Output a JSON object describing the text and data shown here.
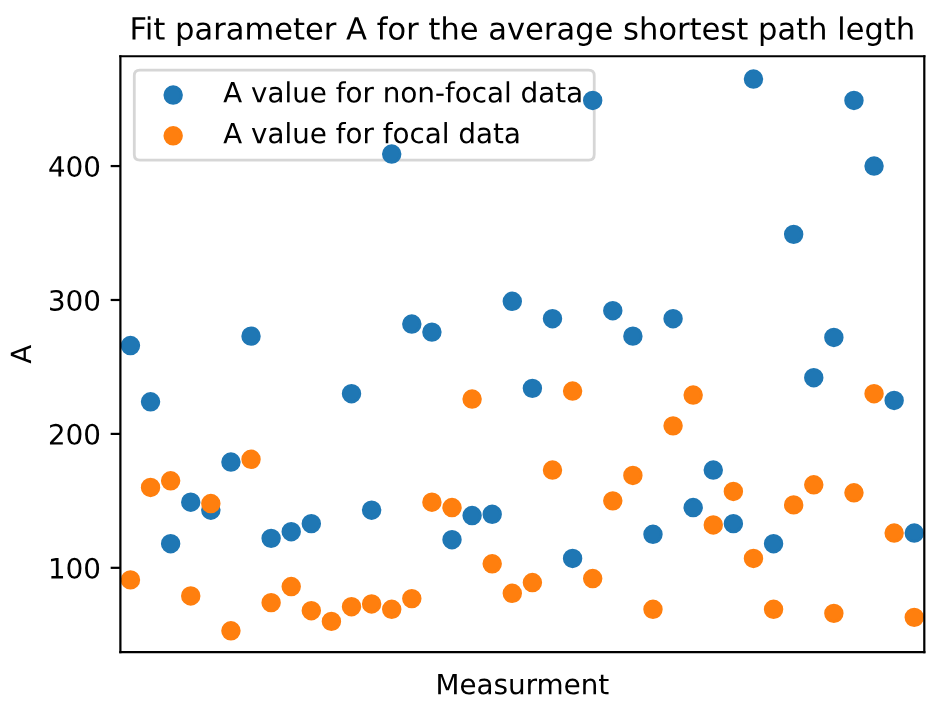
{
  "chart_data": {
    "type": "scatter",
    "title": "Fit parameter A for the average shortest path legth",
    "xlabel": "Measurment",
    "ylabel": "A",
    "categories": [
      null,
      null,
      null,
      null,
      null,
      null,
      null,
      null,
      null,
      null,
      null,
      null,
      null,
      null,
      null,
      null,
      null,
      null,
      null,
      null,
      null,
      null,
      null,
      null,
      null,
      null,
      null,
      null,
      null,
      null,
      null,
      null,
      null,
      null,
      null,
      null,
      null,
      null,
      null,
      null
    ],
    "series": [
      {
        "name": "A value for non-focal data",
        "color": "#1f77b4",
        "values": [
          266,
          224,
          118,
          149,
          143,
          179,
          273,
          122,
          127,
          133,
          null,
          230,
          143,
          409,
          282,
          276,
          121,
          139,
          140,
          299,
          234,
          286,
          107,
          449,
          292,
          273,
          125,
          286,
          145,
          173,
          133,
          465,
          118,
          349,
          242,
          272,
          449,
          400,
          225,
          126
        ]
      },
      {
        "name": "A value for focal data",
        "color": "#ff7f0e",
        "values": [
          91,
          160,
          165,
          79,
          148,
          53,
          181,
          74,
          86,
          68,
          60,
          71,
          73,
          69,
          77,
          149,
          145,
          226,
          103,
          81,
          89,
          173,
          232,
          92,
          150,
          169,
          69,
          206,
          229,
          132,
          157,
          107,
          69,
          147,
          162,
          66,
          156,
          230,
          126,
          63
        ]
      }
    ],
    "ylim": [
      37,
      482
    ],
    "yticks": [
      100,
      200,
      300,
      400
    ],
    "grid": false,
    "legend": "top left",
    "marker": "circle"
  }
}
